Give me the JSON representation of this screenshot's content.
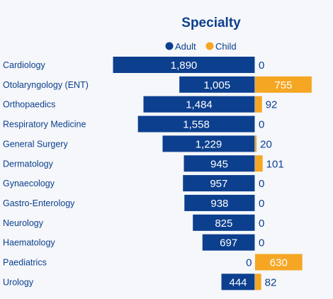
{
  "chart_data": {
    "type": "bar",
    "title": "Specialty",
    "xlabel": "",
    "ylabel": "",
    "legend_position": "top-center",
    "grid": false,
    "categories": [
      "Cardiology",
      "Otolaryngology (ENT)",
      "Orthopaedics",
      "Respiratory Medicine",
      "General Surgery",
      "Dermatology",
      "Gynaecology",
      "Gastro-Enterology",
      "Neurology",
      "Haematology",
      "Paediatrics",
      "Urology"
    ],
    "series": [
      {
        "name": "Adult",
        "color": "#0c3f8e",
        "values": [
          1890,
          1005,
          1484,
          1558,
          1229,
          945,
          957,
          938,
          825,
          697,
          0,
          444
        ],
        "labels": [
          "1,890",
          "1,005",
          "1,484",
          "1,558",
          "1,229",
          "945",
          "957",
          "938",
          "825",
          "697",
          "0",
          "444"
        ]
      },
      {
        "name": "Child",
        "color": "#f5a623",
        "values": [
          0,
          755,
          92,
          0,
          20,
          101,
          0,
          0,
          0,
          0,
          630,
          82
        ],
        "labels": [
          "0",
          "755",
          "92",
          "0",
          "20",
          "101",
          "0",
          "0",
          "0",
          "0",
          "630",
          "82"
        ]
      }
    ]
  }
}
